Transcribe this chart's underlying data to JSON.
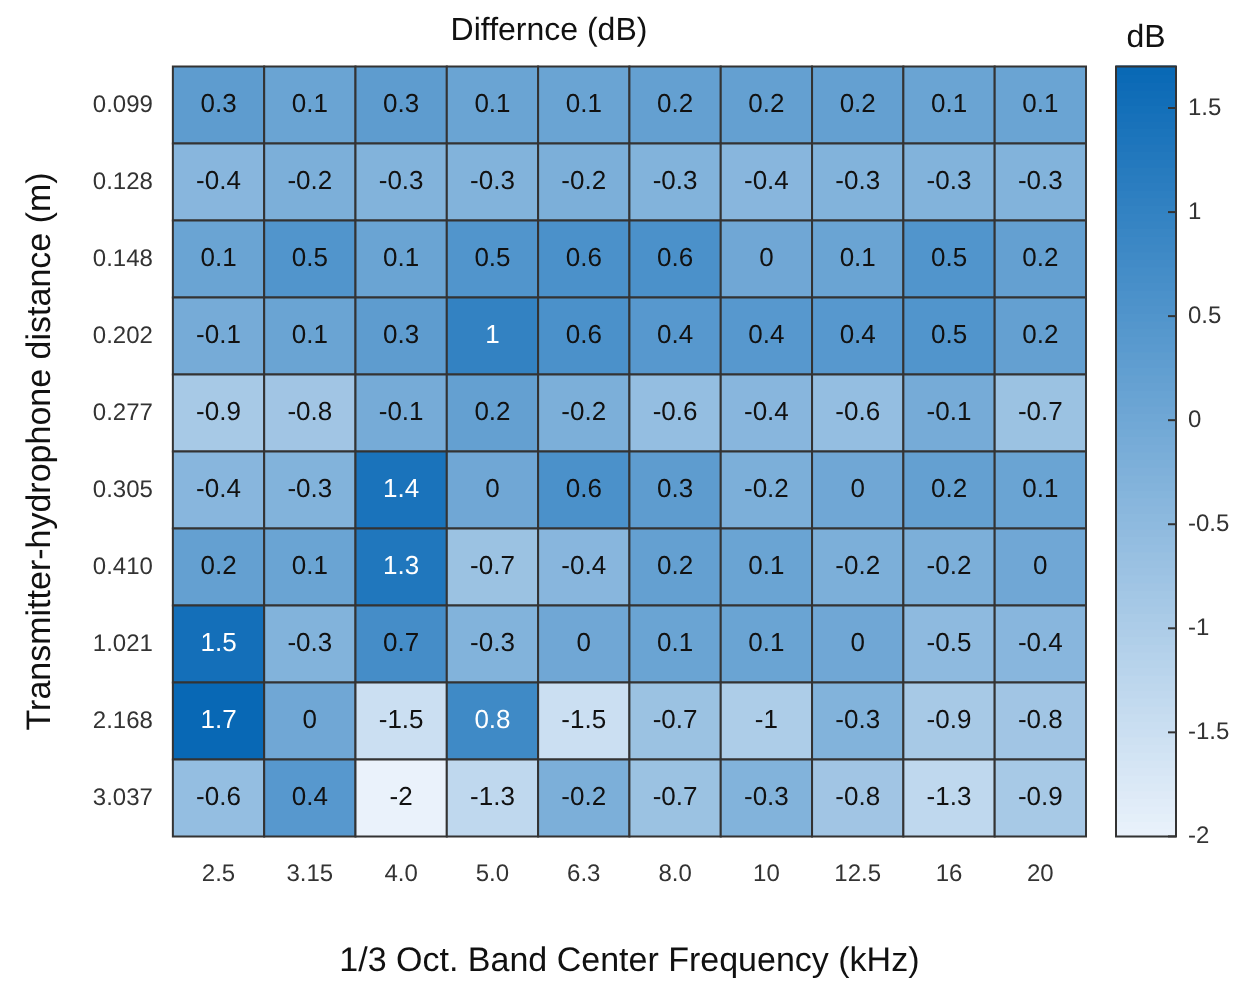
{
  "chart_data": {
    "type": "heatmap",
    "title": "Differnce (dB)",
    "xlabel": "1/3 Oct. Band Center Frequency (kHz)",
    "ylabel": "Transmitter-hydrophone distance (m)",
    "clabel": "dB",
    "categories": [
      "2.5",
      "3.15",
      "4.0",
      "5.0",
      "6.3",
      "8.0",
      "10",
      "12.5",
      "16",
      "20"
    ],
    "y_categories": [
      "0.099",
      "0.128",
      "0.148",
      "0.202",
      "0.277",
      "0.305",
      "0.410",
      "1.021",
      "2.168",
      "3.037"
    ],
    "cells": [
      [
        0.3,
        0.1,
        0.3,
        0.1,
        0.1,
        0.2,
        0.2,
        0.2,
        0.1,
        0.1
      ],
      [
        -0.4,
        -0.2,
        -0.3,
        -0.3,
        -0.2,
        -0.3,
        -0.4,
        -0.3,
        -0.3,
        -0.3
      ],
      [
        0.1,
        0.5,
        0.1,
        0.5,
        0.6,
        0.6,
        0,
        0.1,
        0.5,
        0.2
      ],
      [
        -0.1,
        0.1,
        0.3,
        1,
        0.6,
        0.4,
        0.4,
        0.4,
        0.5,
        0.2
      ],
      [
        -0.9,
        -0.8,
        -0.1,
        0.2,
        -0.2,
        -0.6,
        -0.4,
        -0.6,
        -0.1,
        -0.7
      ],
      [
        -0.4,
        -0.3,
        1.4,
        0,
        0.6,
        0.3,
        -0.2,
        0,
        0.2,
        0.1
      ],
      [
        0.2,
        0.1,
        1.3,
        -0.7,
        -0.4,
        0.2,
        0.1,
        -0.2,
        -0.2,
        0
      ],
      [
        1.5,
        -0.3,
        0.7,
        -0.3,
        0,
        0.1,
        0.1,
        0,
        -0.5,
        -0.4
      ],
      [
        1.7,
        0,
        -1.5,
        0.8,
        -1.5,
        -0.7,
        -1,
        -0.3,
        -0.9,
        -0.8
      ],
      [
        -0.6,
        0.4,
        -2,
        -1.3,
        -0.2,
        -0.7,
        -0.3,
        -0.8,
        -1.3,
        -0.9
      ]
    ],
    "clim": [
      -2,
      1.7
    ],
    "cticks": [
      -2,
      -1.5,
      -1,
      -0.5,
      0,
      0.5,
      1,
      1.5
    ],
    "data_labels": true
  }
}
